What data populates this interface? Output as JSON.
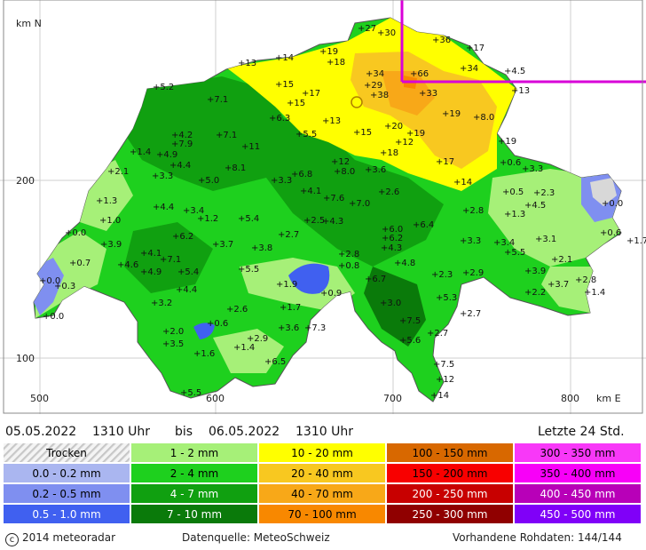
{
  "map": {
    "axis_y_unit": "km N",
    "axis_x_unit": "km E",
    "x_ticks": [
      "500",
      "600",
      "700",
      "800"
    ],
    "y_ticks": [
      "200",
      "100"
    ],
    "measurements": [
      [
        "27",
        403,
        31
      ],
      [
        "30",
        425,
        36
      ],
      [
        "36",
        487,
        44
      ],
      [
        "17",
        525,
        53
      ],
      [
        "19",
        360,
        57
      ],
      [
        "18",
        368,
        69
      ],
      [
        "14",
        310,
        64
      ],
      [
        "13",
        268,
        70
      ],
      [
        "34",
        412,
        82
      ],
      [
        "66",
        462,
        82
      ],
      [
        "34",
        518,
        76
      ],
      [
        "4.5",
        568,
        79
      ],
      [
        "29",
        410,
        95
      ],
      [
        "13",
        576,
        101
      ],
      [
        "38",
        417,
        106
      ],
      [
        "33",
        472,
        104
      ],
      [
        "5.2",
        172,
        97
      ],
      [
        "15",
        310,
        94
      ],
      [
        "17",
        340,
        104
      ],
      [
        "15",
        323,
        115
      ],
      [
        "7.1",
        233,
        111
      ],
      [
        "19",
        498,
        127
      ],
      [
        "8.0",
        533,
        131
      ],
      [
        "13",
        363,
        135
      ],
      [
        "20",
        433,
        141
      ],
      [
        "19",
        458,
        149
      ],
      [
        "12",
        445,
        159
      ],
      [
        "15",
        398,
        148
      ],
      [
        "6.3",
        303,
        132
      ],
      [
        "5.5",
        333,
        150
      ],
      [
        "4.2",
        193,
        151
      ],
      [
        "7.9",
        193,
        161
      ],
      [
        "7.1",
        243,
        151
      ],
      [
        "11",
        272,
        164
      ],
      [
        "4.9",
        176,
        173
      ],
      [
        "4.4",
        191,
        185
      ],
      [
        "19",
        561,
        158
      ],
      [
        "1.4",
        146,
        170
      ],
      [
        "3.3",
        171,
        197
      ],
      [
        "2.1",
        121,
        192
      ],
      [
        "18",
        428,
        171
      ],
      [
        "12",
        373,
        181
      ],
      [
        "17",
        491,
        181
      ],
      [
        "3.6",
        411,
        190
      ],
      [
        "6.8",
        328,
        195
      ],
      [
        "8.0",
        376,
        192
      ],
      [
        "8.1",
        253,
        188
      ],
      [
        "3.3",
        305,
        202
      ],
      [
        "5.0",
        223,
        202
      ],
      [
        "0.6",
        563,
        182
      ],
      [
        "3.3",
        588,
        189
      ],
      [
        "14",
        511,
        204
      ],
      [
        "2.6",
        426,
        215
      ],
      [
        "4.1",
        338,
        214
      ],
      [
        "7.6",
        364,
        222
      ],
      [
        "7.0",
        393,
        228
      ],
      [
        "0.5",
        566,
        215
      ],
      [
        "2.3",
        601,
        216
      ],
      [
        "4.5",
        591,
        230
      ],
      [
        "0.0",
        678,
        228
      ],
      [
        "1.3",
        108,
        225
      ],
      [
        "1.3",
        568,
        240
      ],
      [
        "2.8",
        521,
        236
      ],
      [
        "4.4",
        172,
        232
      ],
      [
        "3.4",
        206,
        236
      ],
      [
        "1.2",
        222,
        245
      ],
      [
        "1.0",
        112,
        247
      ],
      [
        "5.4",
        268,
        245
      ],
      [
        "2.5",
        342,
        247
      ],
      [
        "4.3",
        363,
        248
      ],
      [
        "6.4",
        465,
        252
      ],
      [
        "6.0",
        430,
        257
      ],
      [
        "6.2",
        430,
        267
      ],
      [
        "6.2",
        194,
        265
      ],
      [
        "4.3",
        429,
        278
      ],
      [
        "3.7",
        239,
        274
      ],
      [
        "3.8",
        283,
        278
      ],
      [
        "2.7",
        313,
        263
      ],
      [
        "0.0",
        73,
        261
      ],
      [
        "3.9",
        113,
        274
      ],
      [
        "3.3",
        518,
        270
      ],
      [
        "3.4",
        556,
        272
      ],
      [
        "3.1",
        603,
        268
      ],
      [
        "0.6",
        676,
        261
      ],
      [
        "1.7",
        706,
        270
      ],
      [
        "5.5",
        568,
        283
      ],
      [
        "4.1",
        158,
        284
      ],
      [
        "7.1",
        180,
        291
      ],
      [
        "2.8",
        381,
        285
      ],
      [
        "0.8",
        381,
        298
      ],
      [
        "4.8",
        444,
        295
      ],
      [
        "0.7",
        78,
        295
      ],
      [
        "4.6",
        132,
        297
      ],
      [
        "4.9",
        158,
        305
      ],
      [
        "5.4",
        200,
        305
      ],
      [
        "5.5",
        268,
        302
      ],
      [
        "2.1",
        621,
        291
      ],
      [
        "3.9",
        591,
        304
      ],
      [
        "2.9",
        521,
        306
      ],
      [
        "2.3",
        486,
        308
      ],
      [
        "6.7",
        411,
        313
      ],
      [
        "0.0",
        44,
        315
      ],
      [
        "0.3",
        61,
        321
      ],
      [
        "4.4",
        198,
        325
      ],
      [
        "1.9",
        311,
        319
      ],
      [
        "0.9",
        361,
        329
      ],
      [
        "5.3",
        491,
        334
      ],
      [
        "3.7",
        617,
        319
      ],
      [
        "2.8",
        648,
        314
      ],
      [
        "2.2",
        591,
        328
      ],
      [
        "1.4",
        658,
        328
      ],
      [
        "3.0",
        428,
        340
      ],
      [
        "3.2",
        170,
        340
      ],
      [
        "2.6",
        255,
        347
      ],
      [
        "1.7",
        315,
        345
      ],
      [
        "2.7",
        518,
        352
      ],
      [
        "0.0",
        48,
        355
      ],
      [
        "0.6",
        233,
        363
      ],
      [
        "7.5",
        450,
        360
      ],
      [
        "3.6",
        313,
        368
      ],
      [
        "7.3",
        343,
        368
      ],
      [
        "2.0",
        183,
        372
      ],
      [
        "2.7",
        481,
        374
      ],
      [
        "5.6",
        450,
        382
      ],
      [
        "3.5",
        183,
        386
      ],
      [
        "2.9",
        278,
        380
      ],
      [
        "1.4",
        263,
        390
      ],
      [
        "1.6",
        218,
        397
      ],
      [
        "6.5",
        298,
        406
      ],
      [
        "7.5",
        488,
        409
      ],
      [
        "12",
        491,
        426
      ],
      [
        "5.5",
        203,
        441
      ],
      [
        "14",
        485,
        444
      ]
    ]
  },
  "info": {
    "from_date": "05.05.2022",
    "from_time": "1310 Uhr",
    "bis": "bis",
    "to_date": "06.05.2022",
    "to_time": "1310 Uhr",
    "period_label": "Letzte 24 Std."
  },
  "legend": [
    {
      "label": "Trocken",
      "color": "#d8d8d8",
      "pattern": "dry"
    },
    {
      "label": "0.0 - 0.2 mm",
      "color": "#aab6f0"
    },
    {
      "label": "0.2 - 0.5 mm",
      "color": "#7f8ff0"
    },
    {
      "label": "0.5 - 1.0 mm",
      "color": "#4060f0",
      "text_light": true
    },
    {
      "label": "1 - 2 mm",
      "color": "#a6f078"
    },
    {
      "label": "2 - 4 mm",
      "color": "#1ed01e"
    },
    {
      "label": "4 - 7 mm",
      "color": "#10a010",
      "text_light": true
    },
    {
      "label": "7 - 10 mm",
      "color": "#0a7a0a",
      "text_light": true
    },
    {
      "label": "10 - 20 mm",
      "color": "#ffff00"
    },
    {
      "label": "20 - 40 mm",
      "color": "#f8c820"
    },
    {
      "label": "40 - 70 mm",
      "color": "#f8a818"
    },
    {
      "label": "70 - 100 mm",
      "color": "#f88800"
    },
    {
      "label": "100 - 150 mm",
      "color": "#d86800"
    },
    {
      "label": "150 - 200 mm",
      "color": "#f80000"
    },
    {
      "label": "200 - 250 mm",
      "color": "#c80000",
      "text_light": true
    },
    {
      "label": "250 - 300 mm",
      "color": "#900000",
      "text_light": true
    },
    {
      "label": "300 - 350 mm",
      "color": "#f838f8"
    },
    {
      "label": "350 - 400 mm",
      "color": "#f800f8"
    },
    {
      "label": "400 - 450 mm",
      "color": "#b800b8",
      "text_light": true
    },
    {
      "label": "450 - 500 mm",
      "color": "#8000f8",
      "text_light": true
    }
  ],
  "footer": {
    "copyright": "2014  meteoradar",
    "source": "Datenquelle: MeteoSchweiz",
    "raw": "Vorhandene Rohdaten: 144/144"
  }
}
